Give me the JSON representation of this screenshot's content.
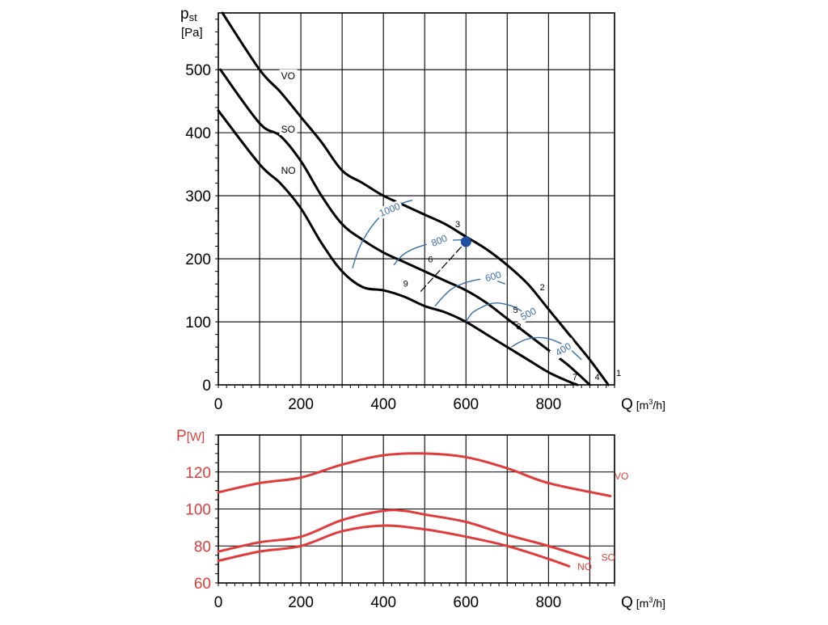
{
  "colors": {
    "black": "#000000",
    "grid": "#000000",
    "blue": "#3a6ea5",
    "red": "#e03c3c",
    "point": "#1f4fa0"
  },
  "chart_data": [
    {
      "id": "pressure",
      "type": "line",
      "title": "",
      "ylabel_main": "p",
      "ylabel_sub": "st",
      "ylabel_unit": "[Pa]",
      "xlabel_main": "Q",
      "xlabel_unit": "[m",
      "xlabel_sup": "3",
      "xlabel_end": "/h]",
      "xlim": [
        0,
        960
      ],
      "ylim": [
        0,
        590
      ],
      "xticks": [
        0,
        200,
        400,
        600,
        800
      ],
      "xtick_labels": [
        "0",
        "200",
        "400",
        "600",
        "800"
      ],
      "yticks": [
        0,
        100,
        200,
        300,
        400,
        500
      ],
      "ytick_labels": [
        "0",
        "100",
        "200",
        "300",
        "400",
        "500"
      ],
      "grid": true,
      "series": [
        {
          "name": "VO",
          "label": "VO",
          "label_at": [
            152,
            485
          ],
          "x": [
            10,
            100,
            150,
            200,
            250,
            300,
            350,
            400,
            450,
            500,
            550,
            600,
            650,
            700,
            750,
            800,
            850,
            900,
            945
          ],
          "y": [
            590,
            500,
            465,
            425,
            385,
            340,
            320,
            300,
            285,
            270,
            255,
            235,
            215,
            190,
            160,
            120,
            80,
            40,
            0
          ]
        },
        {
          "name": "SO",
          "label": "SO",
          "label_at": [
            152,
            400
          ],
          "x": [
            5,
            100,
            150,
            200,
            250,
            300,
            350,
            400,
            450,
            500,
            550,
            600,
            650,
            700,
            750,
            800,
            850,
            900
          ],
          "y": [
            500,
            415,
            395,
            355,
            300,
            255,
            230,
            210,
            195,
            180,
            165,
            150,
            130,
            105,
            80,
            55,
            30,
            0
          ]
        },
        {
          "name": "NO",
          "label": "NO",
          "label_at": [
            152,
            335
          ],
          "x": [
            0,
            100,
            150,
            200,
            250,
            300,
            350,
            400,
            450,
            500,
            550,
            600,
            650,
            700,
            750,
            800,
            850,
            870
          ],
          "y": [
            435,
            350,
            320,
            280,
            225,
            180,
            155,
            150,
            140,
            125,
            115,
            100,
            80,
            60,
            40,
            20,
            5,
            0
          ]
        }
      ],
      "iso_lines": [
        {
          "label": "1000",
          "label_at": [
            418,
            273
          ],
          "label_angle": -22,
          "x": [
            325,
            340,
            360,
            385,
            415,
            445,
            470
          ],
          "y": [
            185,
            215,
            240,
            262,
            278,
            288,
            293
          ]
        },
        {
          "label": "800",
          "label_at": [
            538,
            224
          ],
          "label_angle": -22,
          "x": [
            425,
            445,
            470,
            500,
            530,
            560,
            585,
            605
          ],
          "y": [
            190,
            205,
            215,
            222,
            227,
            229,
            230,
            230
          ]
        },
        {
          "label": "600",
          "label_at": [
            668,
            167
          ],
          "label_angle": -16,
          "x": [
            525,
            545,
            565,
            590,
            615,
            640,
            665,
            695
          ],
          "y": [
            125,
            140,
            152,
            160,
            165,
            168,
            167,
            160
          ]
        },
        {
          "label": "500",
          "label_at": [
            755,
            108
          ],
          "label_angle": -28,
          "x": [
            600,
            615,
            635,
            655,
            675,
            695,
            715,
            735,
            760
          ],
          "y": [
            100,
            114,
            122,
            128,
            130,
            128,
            124,
            117,
            105
          ]
        },
        {
          "label": "400",
          "label_at": [
            840,
            52
          ],
          "label_angle": -32,
          "x": [
            710,
            725,
            745,
            770,
            795,
            815,
            835,
            850,
            880
          ],
          "y": [
            60,
            66,
            72,
            75,
            74,
            70,
            64,
            58,
            40
          ]
        }
      ],
      "operating_point": {
        "x": 600,
        "y": 227
      },
      "dashed_line": {
        "x": [
          490,
          600
        ],
        "y": [
          148,
          227
        ]
      },
      "point_labels": [
        {
          "text": "1",
          "at": [
            970,
            14
          ]
        },
        {
          "text": "2",
          "at": [
            785,
            150
          ]
        },
        {
          "text": "3",
          "at": [
            580,
            250
          ]
        },
        {
          "text": "4",
          "at": [
            918,
            8
          ]
        },
        {
          "text": "5",
          "at": [
            720,
            114
          ]
        },
        {
          "text": "6",
          "at": [
            514,
            194
          ]
        },
        {
          "text": "7",
          "at": [
            864,
            8
          ]
        },
        {
          "text": "8",
          "at": [
            728,
            88
          ]
        },
        {
          "text": "9",
          "at": [
            454,
            156
          ]
        }
      ]
    },
    {
      "id": "power",
      "type": "line",
      "title": "",
      "ylabel_main": "P",
      "ylabel_unit": "[W]",
      "xlabel_main": "Q",
      "xlabel_unit": "[m",
      "xlabel_sup": "3",
      "xlabel_end": "/h]",
      "xlim": [
        0,
        960
      ],
      "ylim": [
        60,
        140
      ],
      "xticks": [
        0,
        200,
        400,
        600,
        800
      ],
      "xtick_labels": [
        "0",
        "200",
        "400",
        "600",
        "800"
      ],
      "yticks": [
        60,
        80,
        100,
        120
      ],
      "ytick_labels": [
        "60",
        "80",
        "100",
        "120"
      ],
      "grid": true,
      "series": [
        {
          "name": "VO",
          "label": "VO",
          "label_at": [
            960,
            116
          ],
          "x": [
            0,
            100,
            200,
            300,
            400,
            500,
            600,
            700,
            800,
            950
          ],
          "y": [
            109,
            114,
            117,
            124,
            129,
            130,
            128,
            122,
            114,
            107
          ]
        },
        {
          "name": "SO",
          "label": "SO",
          "label_at": [
            928,
            72
          ],
          "x": [
            0,
            100,
            200,
            300,
            400,
            450,
            500,
            600,
            700,
            800,
            900
          ],
          "y": [
            77,
            82,
            85,
            94,
            99,
            99,
            97,
            93,
            86,
            80,
            73
          ]
        },
        {
          "name": "NO",
          "label": "NO",
          "label_at": [
            870,
            67
          ],
          "x": [
            0,
            100,
            200,
            300,
            400,
            500,
            600,
            700,
            800,
            850
          ],
          "y": [
            72,
            77,
            80,
            88,
            91,
            89,
            85,
            80,
            73,
            69
          ]
        }
      ]
    }
  ]
}
